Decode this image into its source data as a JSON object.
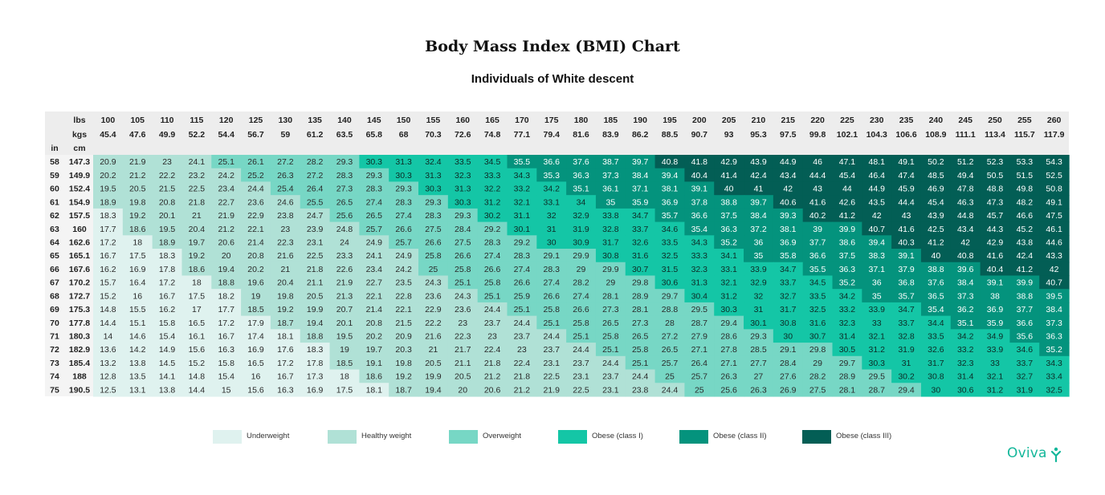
{
  "title": "Body Mass Index (BMI) Chart",
  "subtitle": "Individuals of White descent",
  "brand": "Oviva",
  "chart_data": {
    "type": "heatmap",
    "title": "Body Mass Index (BMI) Chart",
    "subtitle": "Individuals of White descent",
    "column_unit_labels": [
      "lbs",
      "kgs"
    ],
    "row_unit_labels": [
      "in",
      "cm"
    ],
    "weights_lbs": [
      "100",
      "105",
      "110",
      "115",
      "120",
      "125",
      "130",
      "135",
      "140",
      "145",
      "150",
      "155",
      "160",
      "165",
      "170",
      "175",
      "180",
      "185",
      "190",
      "195",
      "200",
      "205",
      "210",
      "215",
      "220",
      "225",
      "230",
      "235",
      "240",
      "245",
      "250",
      "255",
      "260"
    ],
    "weights_kg": [
      "45.4",
      "47.6",
      "49.9",
      "52.2",
      "54.4",
      "56.7",
      "59",
      "61.2",
      "63.5",
      "65.8",
      "68",
      "70.3",
      "72.6",
      "74.8",
      "77.1",
      "79.4",
      "81.6",
      "83.9",
      "86.2",
      "88.5",
      "90.7",
      "93",
      "95.3",
      "97.5",
      "99.8",
      "102.1",
      "104.3",
      "106.6",
      "108.9",
      "111.1",
      "113.4",
      "115.7",
      "117.9"
    ],
    "heights_in": [
      "58",
      "59",
      "60",
      "61",
      "62",
      "63",
      "64",
      "65",
      "66",
      "67",
      "68",
      "69",
      "70",
      "71",
      "72",
      "73",
      "74",
      "75"
    ],
    "heights_cm": [
      "147.3",
      "149.9",
      "152.4",
      "154.9",
      "157.5",
      "160",
      "162.6",
      "165.1",
      "167.6",
      "170.2",
      "172.7",
      "175.3",
      "177.8",
      "180.3",
      "182.9",
      "185.4",
      "188",
      "190.5"
    ],
    "values": [
      [
        "20.9",
        "21.9",
        "23",
        "24.1",
        "25.1",
        "26.1",
        "27.2",
        "28.2",
        "29.3",
        "30.3",
        "31.3",
        "32.4",
        "33.5",
        "34.5",
        "35.5",
        "36.6",
        "37.6",
        "38.7",
        "39.7",
        "40.8",
        "41.8",
        "42.9",
        "43.9",
        "44.9",
        "46",
        "47.1",
        "48.1",
        "49.1",
        "50.2",
        "51.2",
        "52.3",
        "53.3",
        "54.3"
      ],
      [
        "20.2",
        "21.2",
        "22.2",
        "23.2",
        "24.2",
        "25.2",
        "26.3",
        "27.2",
        "28.3",
        "29.3",
        "30.3",
        "31.3",
        "32.3",
        "33.3",
        "34.3",
        "35.3",
        "36.3",
        "37.3",
        "38.4",
        "39.4",
        "40.4",
        "41.4",
        "42.4",
        "43.4",
        "44.4",
        "45.4",
        "46.4",
        "47.4",
        "48.5",
        "49.4",
        "50.5",
        "51.5",
        "52.5"
      ],
      [
        "19.5",
        "20.5",
        "21.5",
        "22.5",
        "23.4",
        "24.4",
        "25.4",
        "26.4",
        "27.3",
        "28.3",
        "29.3",
        "30.3",
        "31.3",
        "32.2",
        "33.2",
        "34.2",
        "35.1",
        "36.1",
        "37.1",
        "38.1",
        "39.1",
        "40",
        "41",
        "42",
        "43",
        "44",
        "44.9",
        "45.9",
        "46.9",
        "47.8",
        "48.8",
        "49.8",
        "50.8"
      ],
      [
        "18.9",
        "19.8",
        "20.8",
        "21.8",
        "22.7",
        "23.6",
        "24.6",
        "25.5",
        "26.5",
        "27.4",
        "28.3",
        "29.3",
        "30.3",
        "31.2",
        "32.1",
        "33.1",
        "34",
        "35",
        "35.9",
        "36.9",
        "37.8",
        "38.8",
        "39.7",
        "40.6",
        "41.6",
        "42.6",
        "43.5",
        "44.4",
        "45.4",
        "46.3",
        "47.3",
        "48.2",
        "49.1"
      ],
      [
        "18.3",
        "19.2",
        "20.1",
        "21",
        "21.9",
        "22.9",
        "23.8",
        "24.7",
        "25.6",
        "26.5",
        "27.4",
        "28.3",
        "29.3",
        "30.2",
        "31.1",
        "32",
        "32.9",
        "33.8",
        "34.7",
        "35.7",
        "36.6",
        "37.5",
        "38.4",
        "39.3",
        "40.2",
        "41.2",
        "42",
        "43",
        "43.9",
        "44.8",
        "45.7",
        "46.6",
        "47.5"
      ],
      [
        "17.7",
        "18.6",
        "19.5",
        "20.4",
        "21.2",
        "22.1",
        "23",
        "23.9",
        "24.8",
        "25.7",
        "26.6",
        "27.5",
        "28.4",
        "29.2",
        "30.1",
        "31",
        "31.9",
        "32.8",
        "33.7",
        "34.6",
        "35.4",
        "36.3",
        "37.2",
        "38.1",
        "39",
        "39.9",
        "40.7",
        "41.6",
        "42.5",
        "43.4",
        "44.3",
        "45.2",
        "46.1"
      ],
      [
        "17.2",
        "18",
        "18.9",
        "19.7",
        "20.6",
        "21.4",
        "22.3",
        "23.1",
        "24",
        "24.9",
        "25.7",
        "26.6",
        "27.5",
        "28.3",
        "29.2",
        "30",
        "30.9",
        "31.7",
        "32.6",
        "33.5",
        "34.3",
        "35.2",
        "36",
        "36.9",
        "37.7",
        "38.6",
        "39.4",
        "40.3",
        "41.2",
        "42",
        "42.9",
        "43.8",
        "44.6"
      ],
      [
        "16.7",
        "17.5",
        "18.3",
        "19.2",
        "20",
        "20.8",
        "21.6",
        "22.5",
        "23.3",
        "24.1",
        "24.9",
        "25.8",
        "26.6",
        "27.4",
        "28.3",
        "29.1",
        "29.9",
        "30.8",
        "31.6",
        "32.5",
        "33.3",
        "34.1",
        "35",
        "35.8",
        "36.6",
        "37.5",
        "38.3",
        "39.1",
        "40",
        "40.8",
        "41.6",
        "42.4",
        "43.3"
      ],
      [
        "16.2",
        "16.9",
        "17.8",
        "18.6",
        "19.4",
        "20.2",
        "21",
        "21.8",
        "22.6",
        "23.4",
        "24.2",
        "25",
        "25.8",
        "26.6",
        "27.4",
        "28.3",
        "29",
        "29.9",
        "30.7",
        "31.5",
        "32.3",
        "33.1",
        "33.9",
        "34.7",
        "35.5",
        "36.3",
        "37.1",
        "37.9",
        "38.8",
        "39.6",
        "40.4",
        "41.2",
        "42"
      ],
      [
        "15.7",
        "16.4",
        "17.2",
        "18",
        "18.8",
        "19.6",
        "20.4",
        "21.1",
        "21.9",
        "22.7",
        "23.5",
        "24.3",
        "25.1",
        "25.8",
        "26.6",
        "27.4",
        "28.2",
        "29",
        "29.8",
        "30.6",
        "31.3",
        "32.1",
        "32.9",
        "33.7",
        "34.5",
        "35.2",
        "36",
        "36.8",
        "37.6",
        "38.4",
        "39.1",
        "39.9",
        "40.7"
      ],
      [
        "15.2",
        "16",
        "16.7",
        "17.5",
        "18.2",
        "19",
        "19.8",
        "20.5",
        "21.3",
        "22.1",
        "22.8",
        "23.6",
        "24.3",
        "25.1",
        "25.9",
        "26.6",
        "27.4",
        "28.1",
        "28.9",
        "29.7",
        "30.4",
        "31.2",
        "32",
        "32.7",
        "33.5",
        "34.2",
        "35",
        "35.7",
        "36.5",
        "37.3",
        "38",
        "38.8",
        "39.5"
      ],
      [
        "14.8",
        "15.5",
        "16.2",
        "17",
        "17.7",
        "18.5",
        "19.2",
        "19.9",
        "20.7",
        "21.4",
        "22.1",
        "22.9",
        "23.6",
        "24.4",
        "25.1",
        "25.8",
        "26.6",
        "27.3",
        "28.1",
        "28.8",
        "29.5",
        "30.3",
        "31",
        "31.7",
        "32.5",
        "33.2",
        "33.9",
        "34.7",
        "35.4",
        "36.2",
        "36.9",
        "37.7",
        "38.4"
      ],
      [
        "14.4",
        "15.1",
        "15.8",
        "16.5",
        "17.2",
        "17.9",
        "18.7",
        "19.4",
        "20.1",
        "20.8",
        "21.5",
        "22.2",
        "23",
        "23.7",
        "24.4",
        "25.1",
        "25.8",
        "26.5",
        "27.3",
        "28",
        "28.7",
        "29.4",
        "30.1",
        "30.8",
        "31.6",
        "32.3",
        "33",
        "33.7",
        "34.4",
        "35.1",
        "35.9",
        "36.6",
        "37.3"
      ],
      [
        "14",
        "14.6",
        "15.4",
        "16.1",
        "16.7",
        "17.4",
        "18.1",
        "18.8",
        "19.5",
        "20.2",
        "20.9",
        "21.6",
        "22.3",
        "23",
        "23.7",
        "24.4",
        "25.1",
        "25.8",
        "26.5",
        "27.2",
        "27.9",
        "28.6",
        "29.3",
        "30",
        "30.7",
        "31.4",
        "32.1",
        "32.8",
        "33.5",
        "34.2",
        "34.9",
        "35.6",
        "36.3"
      ],
      [
        "13.6",
        "14.2",
        "14.9",
        "15.6",
        "16.3",
        "16.9",
        "17.6",
        "18.3",
        "19",
        "19.7",
        "20.3",
        "21",
        "21.7",
        "22.4",
        "23",
        "23.7",
        "24.4",
        "25.1",
        "25.8",
        "26.5",
        "27.1",
        "27.8",
        "28.5",
        "29.1",
        "29.8",
        "30.5",
        "31.2",
        "31.9",
        "32.6",
        "33.2",
        "33.9",
        "34.6",
        "35.2"
      ],
      [
        "13.2",
        "13.8",
        "14.5",
        "15.2",
        "15.8",
        "16.5",
        "17.2",
        "17.8",
        "18.5",
        "19.1",
        "19.8",
        "20.5",
        "21.1",
        "21.8",
        "22.4",
        "23.1",
        "23.7",
        "24.4",
        "25.1",
        "25.7",
        "26.4",
        "27.1",
        "27.7",
        "28.4",
        "29",
        "29.7",
        "30.3",
        "31",
        "31.7",
        "32.3",
        "33",
        "33.7",
        "34.3"
      ],
      [
        "12.8",
        "13.5",
        "14.1",
        "14.8",
        "15.4",
        "16",
        "16.7",
        "17.3",
        "18",
        "18.6",
        "19.2",
        "19.9",
        "20.5",
        "21.2",
        "21.8",
        "22.5",
        "23.1",
        "23.7",
        "24.4",
        "25",
        "25.7",
        "26.3",
        "27",
        "27.6",
        "28.2",
        "28.9",
        "29.5",
        "30.2",
        "30.8",
        "31.4",
        "32.1",
        "32.7",
        "33.4"
      ],
      [
        "12.5",
        "13.1",
        "13.8",
        "14.4",
        "15",
        "15.6",
        "16.3",
        "16.9",
        "17.5",
        "18.1",
        "18.7",
        "19.4",
        "20",
        "20.6",
        "21.2",
        "21.9",
        "22.5",
        "23.1",
        "23.8",
        "24.4",
        "25",
        "25.6",
        "26.3",
        "26.9",
        "27.5",
        "28.1",
        "28.7",
        "29.4",
        "30",
        "30.6",
        "31.2",
        "31.9",
        "32.5"
      ]
    ],
    "legend": [
      "Underweight",
      "Healthy weight",
      "Overweight",
      "Obese (class I)",
      "Obese (class II)",
      "Obese (class III)"
    ],
    "category_colors": [
      "#dff2ef",
      "#b0e1d6",
      "#77d7c5",
      "#14c6a6",
      "#04937d",
      "#035e55"
    ],
    "category_thresholds": [
      18.5,
      25,
      30,
      35,
      40
    ],
    "legend_position": "bottom",
    "grid": false
  }
}
